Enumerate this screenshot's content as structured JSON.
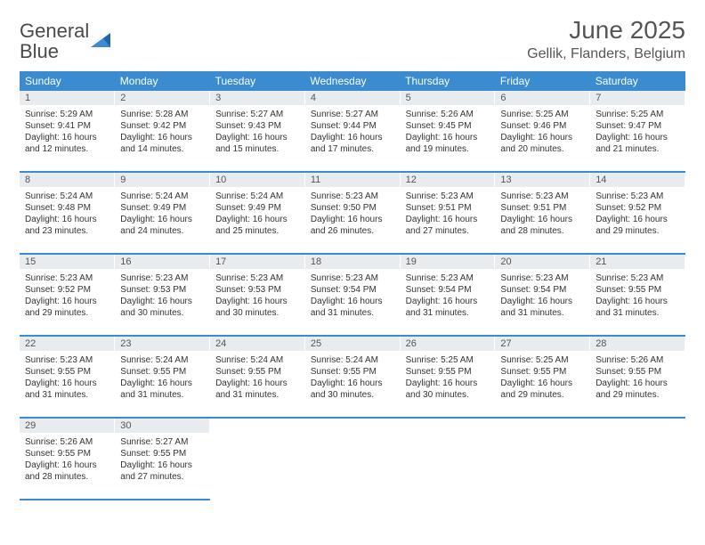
{
  "brand": {
    "part1": "General",
    "part2": "Blue",
    "text_color": "#4a4a4a",
    "accent_color": "#3a7fc4"
  },
  "header": {
    "month": "June 2025",
    "location": "Gellik, Flanders, Belgium"
  },
  "theme": {
    "header_bg": "#3a8bcf",
    "header_text": "#ffffff",
    "daynum_bg": "#e9ecef",
    "row_border": "#3a8bcf"
  },
  "days_of_week": [
    "Sunday",
    "Monday",
    "Tuesday",
    "Wednesday",
    "Thursday",
    "Friday",
    "Saturday"
  ],
  "cells": [
    {
      "n": "1",
      "sr": "5:29 AM",
      "ss": "9:41 PM",
      "dl": "16 hours and 12 minutes."
    },
    {
      "n": "2",
      "sr": "5:28 AM",
      "ss": "9:42 PM",
      "dl": "16 hours and 14 minutes."
    },
    {
      "n": "3",
      "sr": "5:27 AM",
      "ss": "9:43 PM",
      "dl": "16 hours and 15 minutes."
    },
    {
      "n": "4",
      "sr": "5:27 AM",
      "ss": "9:44 PM",
      "dl": "16 hours and 17 minutes."
    },
    {
      "n": "5",
      "sr": "5:26 AM",
      "ss": "9:45 PM",
      "dl": "16 hours and 19 minutes."
    },
    {
      "n": "6",
      "sr": "5:25 AM",
      "ss": "9:46 PM",
      "dl": "16 hours and 20 minutes."
    },
    {
      "n": "7",
      "sr": "5:25 AM",
      "ss": "9:47 PM",
      "dl": "16 hours and 21 minutes."
    },
    {
      "n": "8",
      "sr": "5:24 AM",
      "ss": "9:48 PM",
      "dl": "16 hours and 23 minutes."
    },
    {
      "n": "9",
      "sr": "5:24 AM",
      "ss": "9:49 PM",
      "dl": "16 hours and 24 minutes."
    },
    {
      "n": "10",
      "sr": "5:24 AM",
      "ss": "9:49 PM",
      "dl": "16 hours and 25 minutes."
    },
    {
      "n": "11",
      "sr": "5:23 AM",
      "ss": "9:50 PM",
      "dl": "16 hours and 26 minutes."
    },
    {
      "n": "12",
      "sr": "5:23 AM",
      "ss": "9:51 PM",
      "dl": "16 hours and 27 minutes."
    },
    {
      "n": "13",
      "sr": "5:23 AM",
      "ss": "9:51 PM",
      "dl": "16 hours and 28 minutes."
    },
    {
      "n": "14",
      "sr": "5:23 AM",
      "ss": "9:52 PM",
      "dl": "16 hours and 29 minutes."
    },
    {
      "n": "15",
      "sr": "5:23 AM",
      "ss": "9:52 PM",
      "dl": "16 hours and 29 minutes."
    },
    {
      "n": "16",
      "sr": "5:23 AM",
      "ss": "9:53 PM",
      "dl": "16 hours and 30 minutes."
    },
    {
      "n": "17",
      "sr": "5:23 AM",
      "ss": "9:53 PM",
      "dl": "16 hours and 30 minutes."
    },
    {
      "n": "18",
      "sr": "5:23 AM",
      "ss": "9:54 PM",
      "dl": "16 hours and 31 minutes."
    },
    {
      "n": "19",
      "sr": "5:23 AM",
      "ss": "9:54 PM",
      "dl": "16 hours and 31 minutes."
    },
    {
      "n": "20",
      "sr": "5:23 AM",
      "ss": "9:54 PM",
      "dl": "16 hours and 31 minutes."
    },
    {
      "n": "21",
      "sr": "5:23 AM",
      "ss": "9:55 PM",
      "dl": "16 hours and 31 minutes."
    },
    {
      "n": "22",
      "sr": "5:23 AM",
      "ss": "9:55 PM",
      "dl": "16 hours and 31 minutes."
    },
    {
      "n": "23",
      "sr": "5:24 AM",
      "ss": "9:55 PM",
      "dl": "16 hours and 31 minutes."
    },
    {
      "n": "24",
      "sr": "5:24 AM",
      "ss": "9:55 PM",
      "dl": "16 hours and 31 minutes."
    },
    {
      "n": "25",
      "sr": "5:24 AM",
      "ss": "9:55 PM",
      "dl": "16 hours and 30 minutes."
    },
    {
      "n": "26",
      "sr": "5:25 AM",
      "ss": "9:55 PM",
      "dl": "16 hours and 30 minutes."
    },
    {
      "n": "27",
      "sr": "5:25 AM",
      "ss": "9:55 PM",
      "dl": "16 hours and 29 minutes."
    },
    {
      "n": "28",
      "sr": "5:26 AM",
      "ss": "9:55 PM",
      "dl": "16 hours and 29 minutes."
    },
    {
      "n": "29",
      "sr": "5:26 AM",
      "ss": "9:55 PM",
      "dl": "16 hours and 28 minutes."
    },
    {
      "n": "30",
      "sr": "5:27 AM",
      "ss": "9:55 PM",
      "dl": "16 hours and 27 minutes."
    }
  ],
  "labels": {
    "sunrise": "Sunrise:",
    "sunset": "Sunset:",
    "daylight": "Daylight:"
  }
}
